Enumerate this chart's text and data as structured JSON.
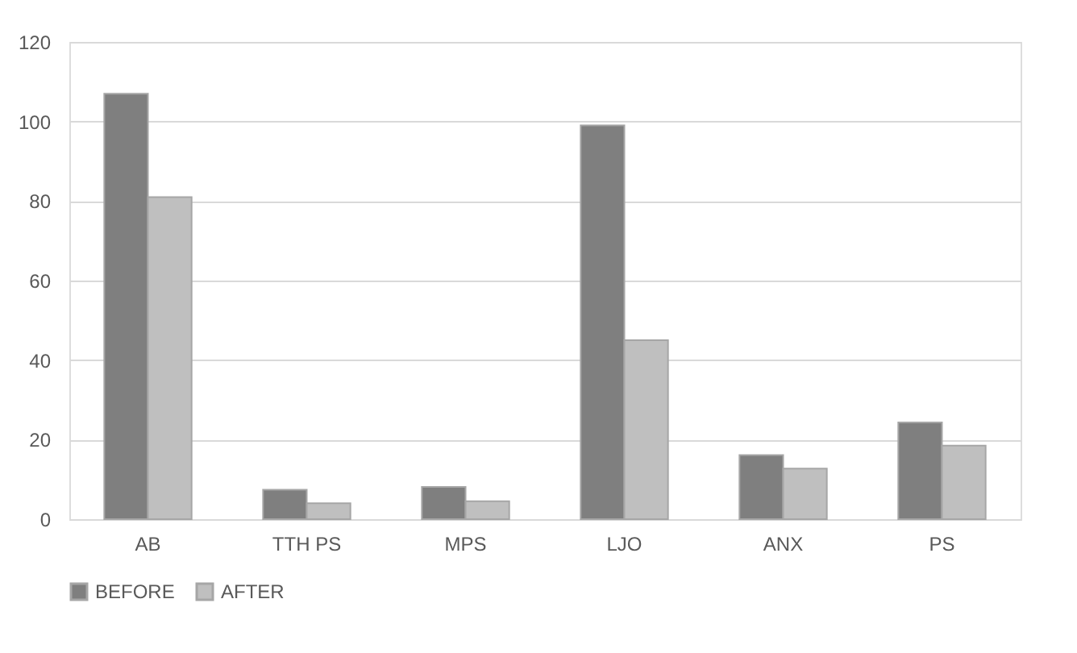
{
  "chart_data": {
    "type": "bar",
    "categories": [
      "AB",
      "TTH PS",
      "MPS",
      "LJO",
      "ANX",
      "PS"
    ],
    "series": [
      {
        "name": "BEFORE",
        "color": "#7f7f7f",
        "values": [
          107,
          7.4,
          8.1,
          99,
          16.1,
          24.3
        ]
      },
      {
        "name": "AFTER",
        "color": "#bfbfbf",
        "values": [
          81,
          4,
          4.5,
          45,
          12.7,
          18.5
        ]
      }
    ],
    "ylim": [
      0,
      120
    ],
    "yticks": [
      0,
      20,
      40,
      60,
      80,
      100,
      120
    ],
    "grid": "y",
    "legend": "bottom"
  }
}
